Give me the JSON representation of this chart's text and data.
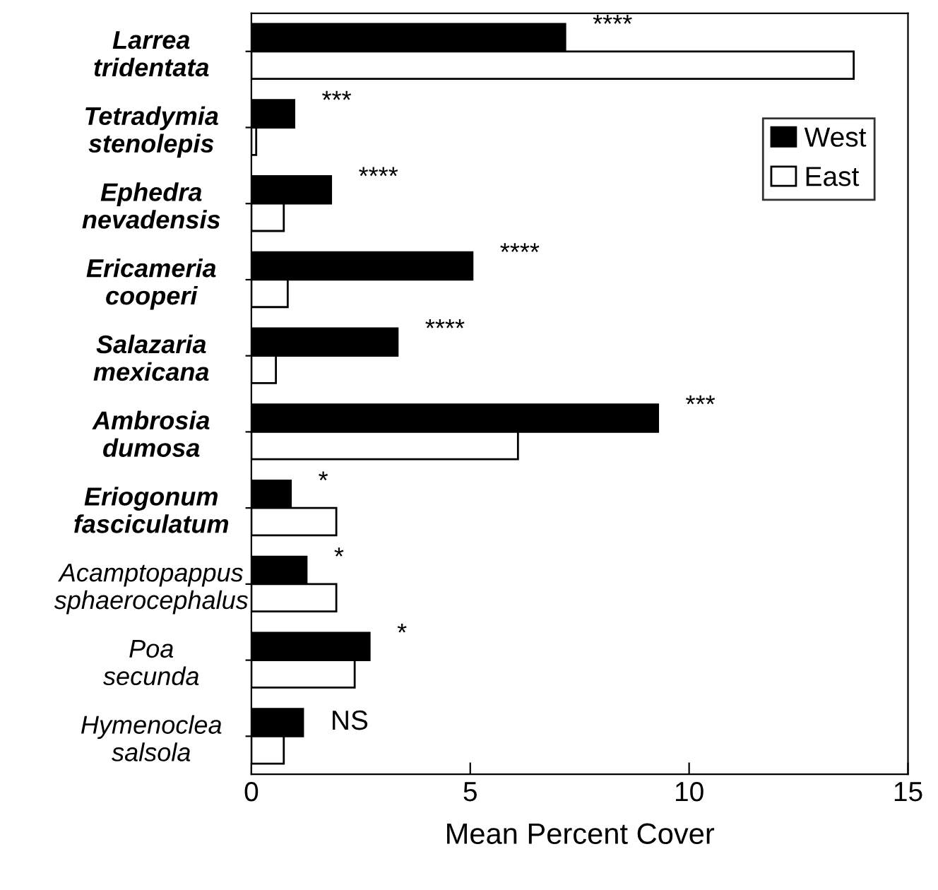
{
  "chart_data": {
    "type": "bar",
    "orientation": "horizontal",
    "xlabel": "Mean Percent Cover",
    "categories": [
      "Larrea\ntridentata",
      "Tetradymia\nstenolepis",
      "Ephedra\nnevadensis",
      "Ericameria\ncooperi",
      "Salazaria\nmexicana",
      "Ambrosia\ndumosa",
      "Eriogonum\nfasciculatum",
      "Acamptopappus\nsphaerocephalus",
      "Poa\nsecunda",
      "Hymenoclea\nsalsola"
    ],
    "series": [
      {
        "name": "West",
        "color": "#000000",
        "values": [
          7.17,
          0.98,
          1.82,
          5.05,
          3.34,
          9.29,
          0.9,
          1.26,
          2.7,
          1.18
        ]
      },
      {
        "name": "East",
        "color": "#ffffff",
        "values": [
          13.76,
          0.11,
          0.74,
          0.83,
          0.56,
          6.09,
          1.94,
          1.94,
          2.36,
          0.74
        ]
      }
    ],
    "xlim": [
      0,
      15
    ],
    "xticks": [
      0,
      5,
      10,
      15
    ],
    "legend": "top right",
    "grid": false,
    "annotations": [
      {
        "text": "****",
        "x": 7.17,
        "y": "Larrea\ntridentata"
      },
      {
        "text": "***",
        "x": 0.98,
        "y": "Tetradymia\nstenolepis"
      },
      {
        "text": "****",
        "x": 1.82,
        "y": "Ephedra\nnevadensis"
      },
      {
        "text": "****",
        "x": 5.05,
        "y": "Ericameria\ncooperi"
      },
      {
        "text": "****",
        "x": 3.34,
        "y": "Salazaria\nmexicana"
      },
      {
        "text": "***",
        "x": 9.29,
        "y": "Ambrosia\ndumosa"
      },
      {
        "text": "*",
        "x": 0.9,
        "y": "Eriogonum\nfasciculatum"
      },
      {
        "text": "*",
        "x": 1.26,
        "y": "Acamptopappus\nsphaerocephalus"
      },
      {
        "text": "*",
        "x": 2.7,
        "y": "Poa\nsecunda"
      },
      {
        "text": "NS",
        "x": 1.18,
        "y": "Hymenoclea\nsalsola"
      }
    ]
  }
}
